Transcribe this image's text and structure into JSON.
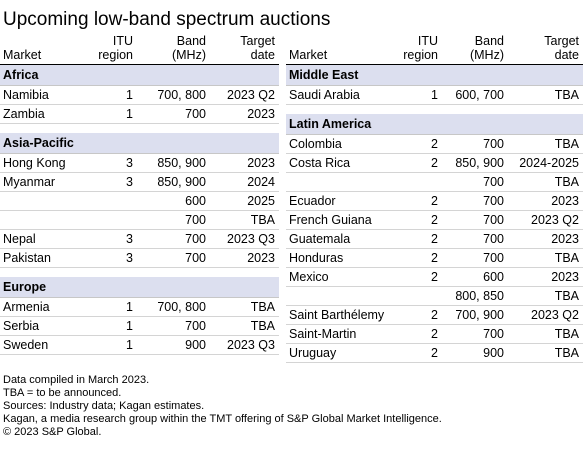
{
  "title": "Upcoming low-band spectrum auctions",
  "columns": {
    "market": "Market",
    "itu_line1": "ITU",
    "itu_line2": "region",
    "band_line1": "Band",
    "band_line2": "(MHz)",
    "target_line1": "Target",
    "target_line2": "date"
  },
  "left_sections": [
    {
      "name": "Africa",
      "rows": [
        {
          "market": "Namibia",
          "itu": "1",
          "band": "700, 800",
          "target": "2023 Q2"
        },
        {
          "market": "Zambia",
          "itu": "1",
          "band": "700",
          "target": "2023"
        }
      ]
    },
    {
      "name": "Asia-Pacific",
      "rows": [
        {
          "market": "Hong Kong",
          "itu": "3",
          "band": "850, 900",
          "target": "2023"
        },
        {
          "market": "Myanmar",
          "itu": "3",
          "band": "850, 900",
          "target": "2024"
        },
        {
          "market": "",
          "itu": "",
          "band": "600",
          "target": "2025"
        },
        {
          "market": "",
          "itu": "",
          "band": "700",
          "target": "TBA"
        },
        {
          "market": "Nepal",
          "itu": "3",
          "band": "700",
          "target": "2023 Q3"
        },
        {
          "market": "Pakistan",
          "itu": "3",
          "band": "700",
          "target": "2023"
        }
      ]
    },
    {
      "name": "Europe",
      "rows": [
        {
          "market": "Armenia",
          "itu": "1",
          "band": "700, 800",
          "target": "TBA"
        },
        {
          "market": "Serbia",
          "itu": "1",
          "band": "700",
          "target": "TBA"
        },
        {
          "market": "Sweden",
          "itu": "1",
          "band": "900",
          "target": "2023 Q3"
        }
      ]
    }
  ],
  "right_sections": [
    {
      "name": "Middle East",
      "rows": [
        {
          "market": "Saudi Arabia",
          "itu": "1",
          "band": "600, 700",
          "target": "TBA"
        }
      ]
    },
    {
      "name": "Latin America",
      "rows": [
        {
          "market": "Colombia",
          "itu": "2",
          "band": "700",
          "target": "TBA"
        },
        {
          "market": "Costa Rica",
          "itu": "2",
          "band": "850, 900",
          "target": "2024-2025"
        },
        {
          "market": "",
          "itu": "",
          "band": "700",
          "target": "TBA"
        },
        {
          "market": "Ecuador",
          "itu": "2",
          "band": "700",
          "target": "2023"
        },
        {
          "market": "French Guiana",
          "itu": "2",
          "band": "700",
          "target": "2023 Q2"
        },
        {
          "market": "Guatemala",
          "itu": "2",
          "band": "700",
          "target": "2023"
        },
        {
          "market": "Honduras",
          "itu": "2",
          "band": "700",
          "target": "TBA"
        },
        {
          "market": "Mexico",
          "itu": "2",
          "band": "600",
          "target": "2023"
        },
        {
          "market": "",
          "itu": "",
          "band": "800, 850",
          "target": "TBA"
        },
        {
          "market": "Saint Barthélemy",
          "itu": "2",
          "band": "700, 900",
          "target": "2023 Q2"
        },
        {
          "market": "Saint-Martin",
          "itu": "2",
          "band": "700",
          "target": "TBA"
        },
        {
          "market": "Uruguay",
          "itu": "2",
          "band": "900",
          "target": "TBA"
        }
      ]
    }
  ],
  "notes": [
    "Data compiled in March 2023.",
    "TBA = to be announced.",
    "Sources: Industry data; Kagan estimates.",
    "Kagan, a media research group within the TMT offering of S&P Global Market Intelligence.",
    "© 2023 S&P Global."
  ],
  "colors": {
    "section_fill": "#dcdfef",
    "rule": "#d4d4d4"
  }
}
